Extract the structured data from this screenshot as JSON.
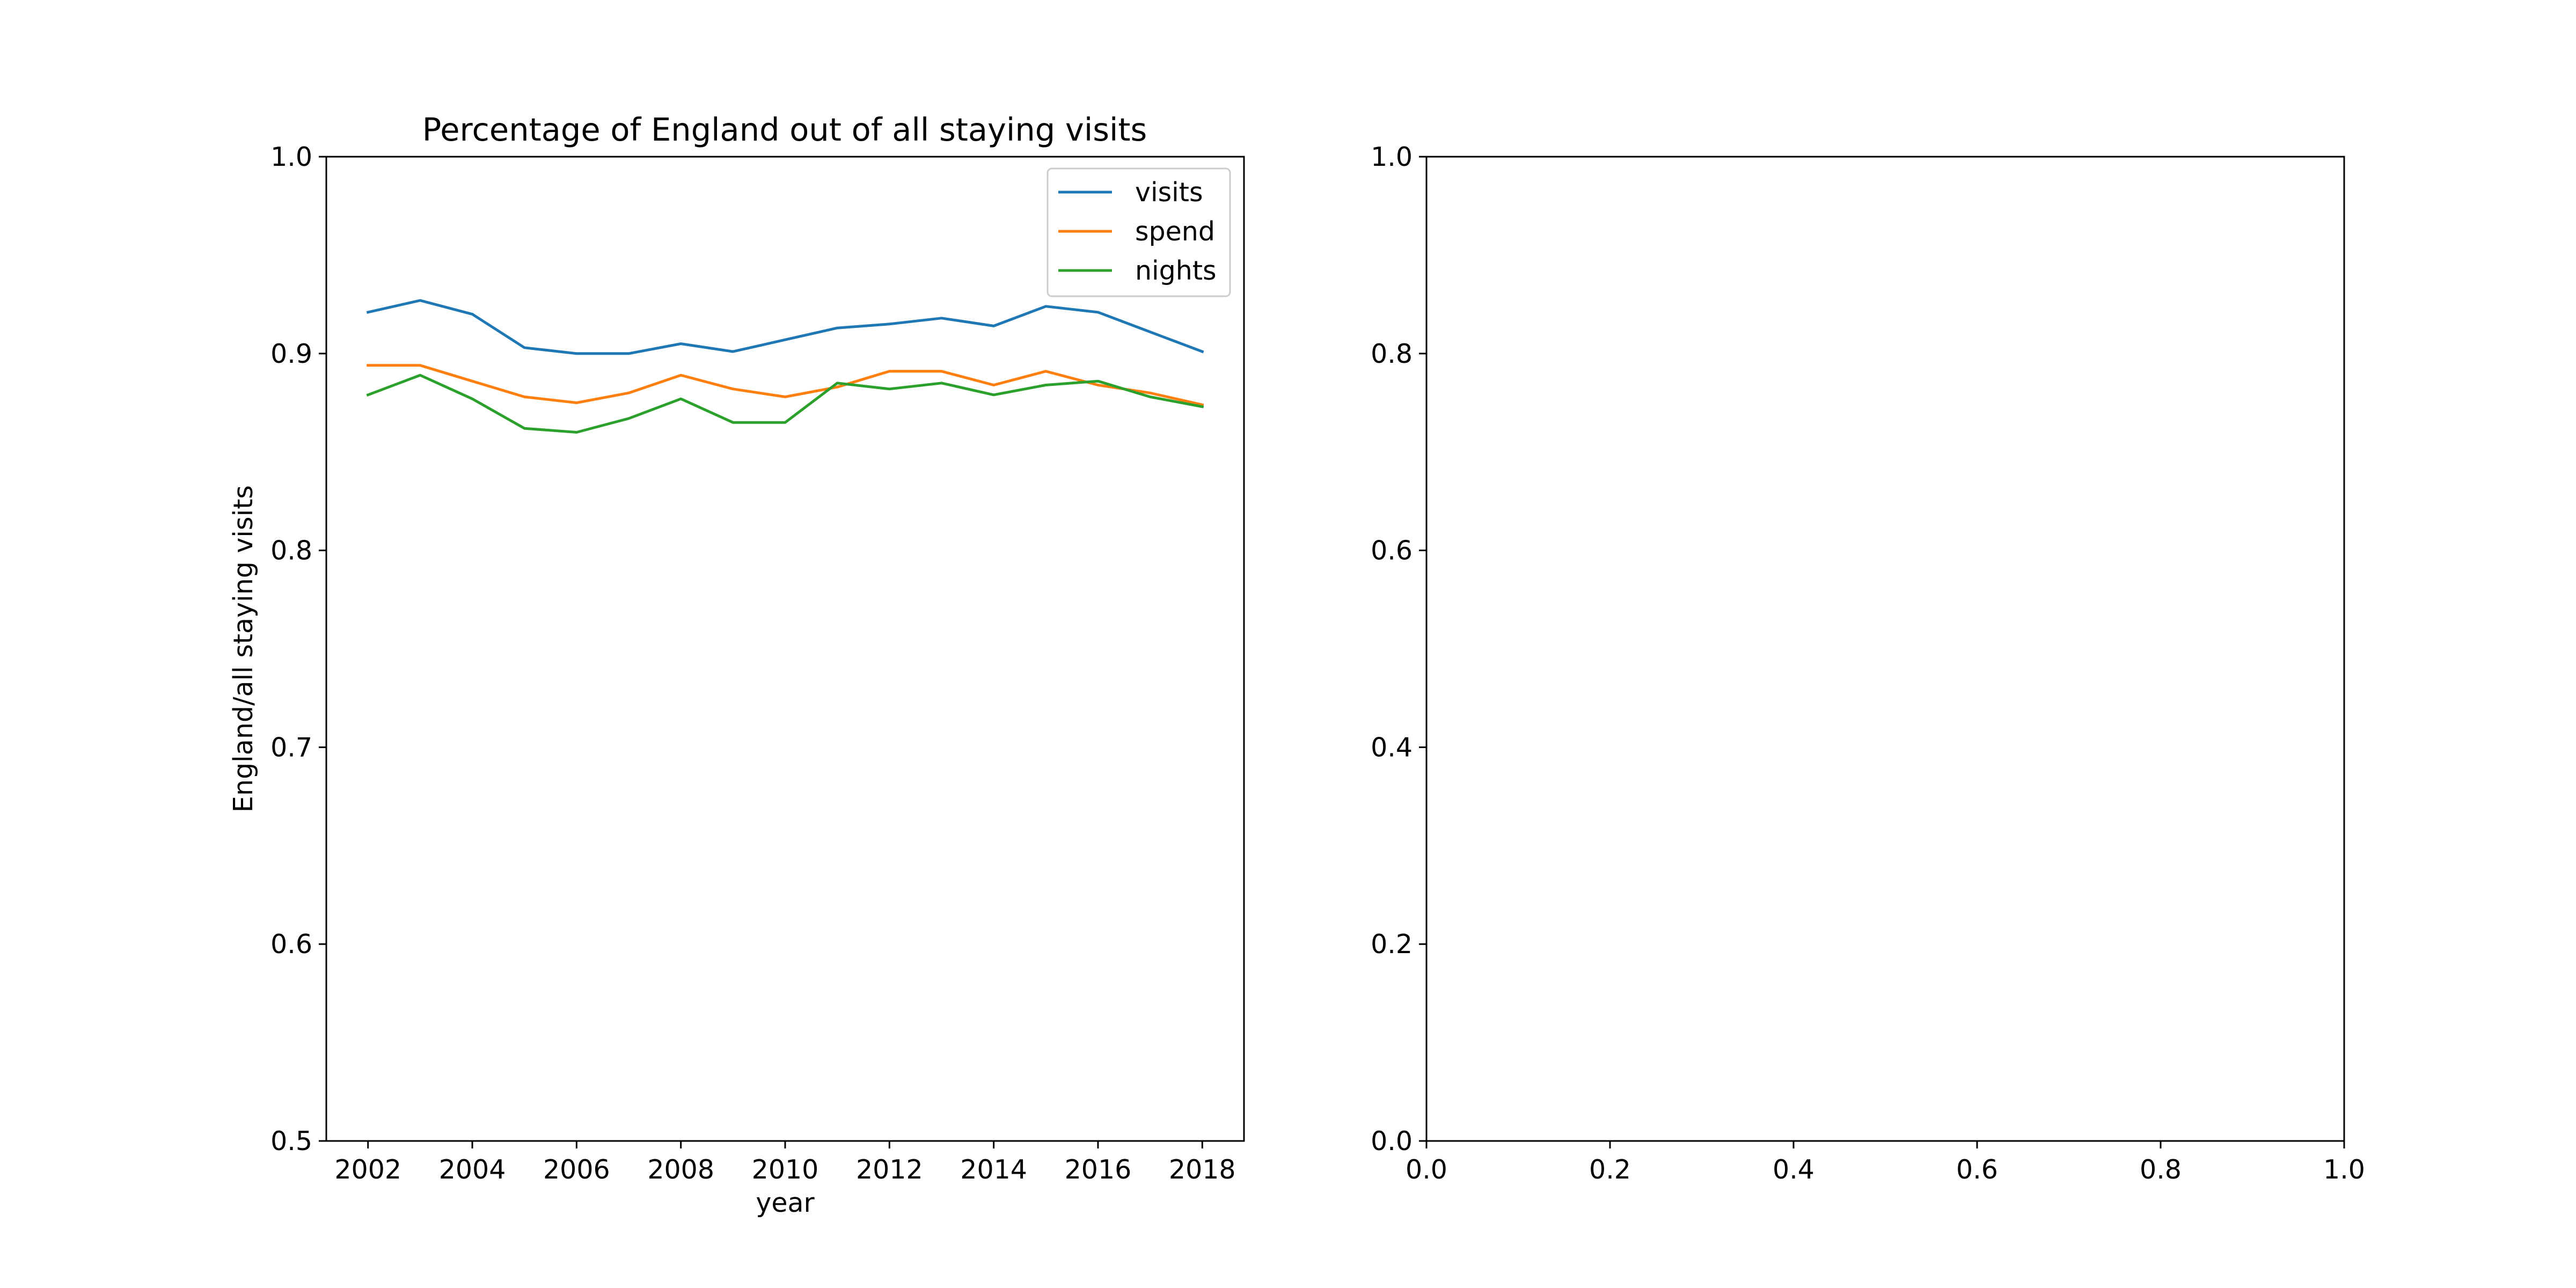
{
  "chart_data": [
    {
      "type": "line",
      "title": "Percentage of England out of all staying visits",
      "xlabel": "year",
      "ylabel": "England/all staying visits",
      "xlim": [
        2001.2,
        2018.8
      ],
      "ylim": [
        0.5,
        1.0
      ],
      "xticks": [
        2002,
        2004,
        2006,
        2008,
        2010,
        2012,
        2014,
        2016,
        2018
      ],
      "xtick_labels": [
        "2002",
        "2004",
        "2006",
        "2008",
        "2010",
        "2012",
        "2014",
        "2016",
        "2018"
      ],
      "yticks": [
        0.5,
        0.6,
        0.7,
        0.8,
        0.9,
        1.0
      ],
      "ytick_labels": [
        "0.5",
        "0.6",
        "0.7",
        "0.8",
        "0.9",
        "1.0"
      ],
      "legend": "top-right",
      "grid": false,
      "x": [
        2002,
        2003,
        2004,
        2005,
        2006,
        2007,
        2008,
        2009,
        2010,
        2011,
        2012,
        2013,
        2014,
        2015,
        2016,
        2017,
        2018
      ],
      "series": [
        {
          "name": "visits",
          "color": "#1f77b4",
          "values": [
            0.921,
            0.927,
            0.92,
            0.903,
            0.9,
            0.9,
            0.905,
            0.901,
            0.907,
            0.913,
            0.915,
            0.918,
            0.914,
            0.924,
            0.921,
            0.911,
            0.901
          ]
        },
        {
          "name": "spend",
          "color": "#ff7f0e",
          "values": [
            0.894,
            0.894,
            0.886,
            0.878,
            0.875,
            0.88,
            0.889,
            0.882,
            0.878,
            0.883,
            0.891,
            0.891,
            0.884,
            0.891,
            0.884,
            0.88,
            0.874
          ]
        },
        {
          "name": "nights",
          "color": "#2ca02c",
          "values": [
            0.879,
            0.889,
            0.877,
            0.862,
            0.86,
            0.867,
            0.877,
            0.865,
            0.865,
            0.885,
            0.882,
            0.885,
            0.879,
            0.884,
            0.886,
            0.878,
            0.873
          ]
        }
      ]
    },
    {
      "type": "line",
      "title": "",
      "xlabel": "",
      "ylabel": "",
      "xlim": [
        0.0,
        1.0
      ],
      "ylim": [
        0.0,
        1.0
      ],
      "xticks": [
        0.0,
        0.2,
        0.4,
        0.6,
        0.8,
        1.0
      ],
      "xtick_labels": [
        "0.0",
        "0.2",
        "0.4",
        "0.6",
        "0.8",
        "1.0"
      ],
      "yticks": [
        0.0,
        0.2,
        0.4,
        0.6,
        0.8,
        1.0
      ],
      "ytick_labels": [
        "0.0",
        "0.2",
        "0.4",
        "0.6",
        "0.8",
        "1.0"
      ],
      "grid": false,
      "series": []
    }
  ]
}
